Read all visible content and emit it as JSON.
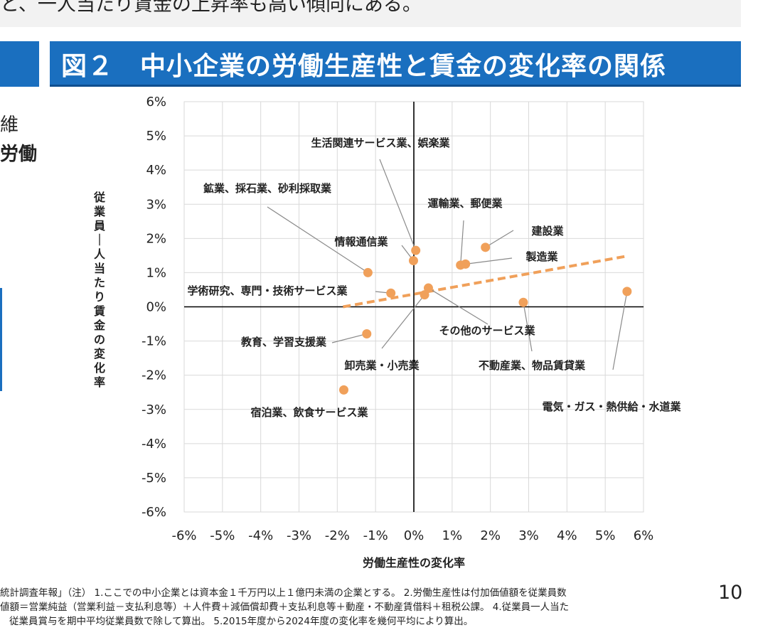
{
  "header": {
    "top_fragment": "と、一人当たり賃金の上昇率も高い傾向にある。",
    "figure_title": "図２　中小企業の労働生産性と賃金の変化率の関係",
    "left_fragment_1": "維",
    "left_fragment_2": "労働"
  },
  "chart_data": {
    "type": "scatter",
    "xlabel": "労働生産性の変化率",
    "ylabel": "従業員一人当たり賃金の変化率",
    "xlim": [
      -0.06,
      0.06
    ],
    "ylim": [
      -0.06,
      0.06
    ],
    "x_ticks": [
      "-6%",
      "-5%",
      "-4%",
      "-3%",
      "-2%",
      "-1%",
      "0%",
      "1%",
      "2%",
      "3%",
      "4%",
      "5%",
      "6%"
    ],
    "y_ticks": [
      "6%",
      "5%",
      "4%",
      "3%",
      "2%",
      "1%",
      "0%",
      "-1%",
      "-2%",
      "-3%",
      "-4%",
      "-5%",
      "-6%"
    ],
    "grid": true,
    "point_color": "#f0a05a",
    "trend_color": "#f0a05a",
    "trendline": [
      [
        -0.0185,
        0.0
      ],
      [
        0.0555,
        0.0148
      ]
    ],
    "points": [
      {
        "label": "生活関連サービス業、娯楽業",
        "x": 0.0005,
        "y": 0.0165
      },
      {
        "label": "鉱業、採石業、砂利採取業",
        "x": -0.012,
        "y": 0.01
      },
      {
        "label": "運輸業、郵便業",
        "x": 0.0122,
        "y": 0.0122
      },
      {
        "label": "建設業",
        "x": 0.0187,
        "y": 0.0174
      },
      {
        "label": "情報通信業",
        "x": -0.0001,
        "y": 0.0135
      },
      {
        "label": "製造業",
        "x": 0.0135,
        "y": 0.0125
      },
      {
        "label": "学術研究、専門・技術サービス業",
        "x": -0.006,
        "y": 0.004
      },
      {
        "label": "その他のサービス業",
        "x": 0.0038,
        "y": 0.0055
      },
      {
        "label": "卸売業・小売業",
        "x": 0.0028,
        "y": 0.0035
      },
      {
        "label": "不動産業、物品賃貸業",
        "x": 0.0286,
        "y": 0.0013
      },
      {
        "label": "電気・ガス・熱供給・水道業",
        "x": 0.0557,
        "y": 0.0045
      },
      {
        "label": "教育、学習支援業",
        "x": -0.0123,
        "y": -0.0079
      },
      {
        "label": "宿泊業、飲食サービス業",
        "x": -0.0183,
        "y": -0.0243
      }
    ]
  },
  "footer": {
    "line1": "統計調査年報」（注） 1.ここでの中小企業とは資本金１千万円以上１億円未満の企業とする。 2.労働生産性は付加価値額を従業員数",
    "line2": "値額＝営業純益（営業利益－支払利息等）＋人件費＋減価償却費＋支払利息等＋動産・不動産賃借料＋租税公課。 4.従業員一人当た",
    "line3": "従業員賞与を期中平均従業員数で除して算出。 5.2015年度から2024年度の変化率を幾何平均により算出。",
    "page_number": "10"
  }
}
